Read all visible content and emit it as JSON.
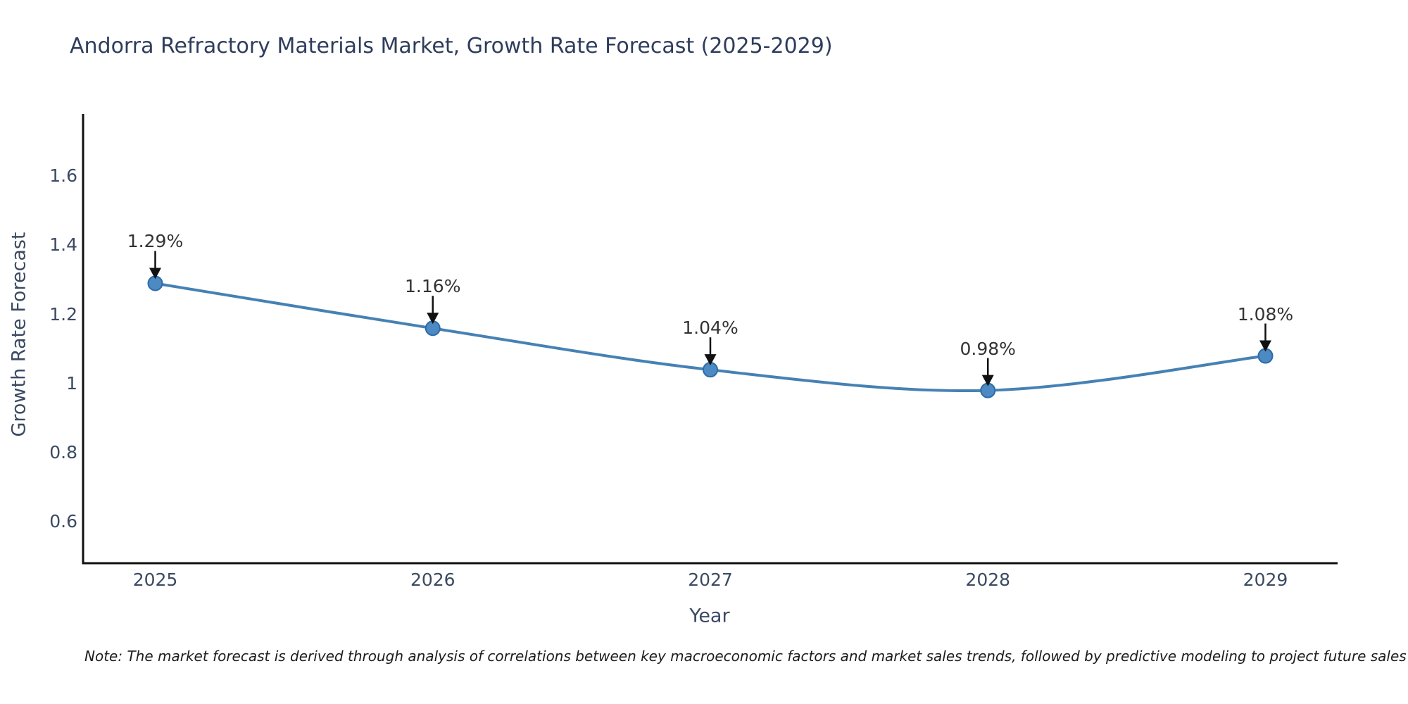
{
  "page": {
    "title": "Andorra Refractory Materials Market, Growth Rate Forecast (2025-2029)",
    "note": "Note: The market forecast is derived through analysis of correlations between key macroeconomic factors and market sales trends, followed by predictive modeling to project future sales"
  },
  "chart_data": {
    "type": "line",
    "title": "Andorra Refractory Materials Market, Growth Rate Forecast (2025-2029)",
    "xlabel": "Year",
    "ylabel": "Growth Rate Forecast",
    "x": [
      2025,
      2026,
      2027,
      2028,
      2029
    ],
    "values": [
      1.29,
      1.16,
      1.04,
      0.98,
      1.08
    ],
    "point_labels": [
      "1.29%",
      "1.16%",
      "1.04%",
      "0.98%",
      "1.08%"
    ],
    "xtick_labels": [
      "2025",
      "2026",
      "2027",
      "2028",
      "2029"
    ],
    "yticks": [
      0.6,
      0.8,
      1,
      1.2,
      1.4,
      1.6
    ],
    "ytick_labels": [
      "0.6",
      "0.8",
      "1",
      "1.2",
      "1.4",
      "1.6"
    ],
    "xlim": [
      2024.74,
      2029.26
    ],
    "ylim": [
      0.48,
      1.78
    ],
    "grid": false,
    "legend": "none",
    "line_smooth": true,
    "colors": {
      "line": "#4681b4",
      "marker_fill": "#4d89c2",
      "marker_edge": "#2d6ba8",
      "arrow": "#111111",
      "axis": "#0f0f0f",
      "tick_text": "#3b4a63",
      "title_text": "#2e3d5c",
      "annotation_text": "#333333"
    }
  }
}
